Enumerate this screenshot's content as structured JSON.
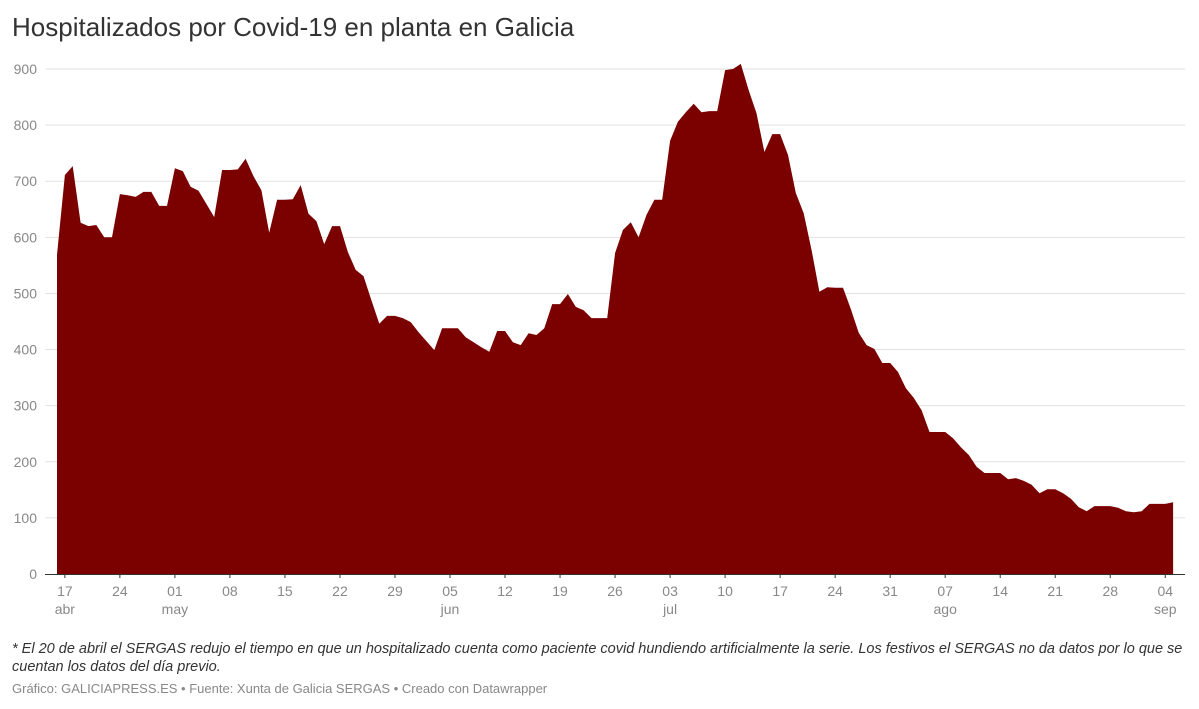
{
  "chart_data": {
    "type": "area",
    "title": "Hospitalizados por Covid-19 en planta en Galicia",
    "color": "#7b0000",
    "ylim": [
      0,
      900
    ],
    "yticks": [
      0,
      100,
      200,
      300,
      400,
      500,
      600,
      700,
      800,
      900
    ],
    "grid": true,
    "xticks": [
      {
        "date": "04-17",
        "label": "17",
        "month": "abr"
      },
      {
        "date": "04-24",
        "label": "24"
      },
      {
        "date": "05-01",
        "label": "01",
        "month": "may"
      },
      {
        "date": "05-08",
        "label": "08"
      },
      {
        "date": "05-15",
        "label": "15"
      },
      {
        "date": "05-22",
        "label": "22"
      },
      {
        "date": "05-29",
        "label": "29"
      },
      {
        "date": "06-05",
        "label": "05",
        "month": "jun"
      },
      {
        "date": "06-12",
        "label": "12"
      },
      {
        "date": "06-19",
        "label": "19"
      },
      {
        "date": "06-26",
        "label": "26"
      },
      {
        "date": "07-03",
        "label": "03",
        "month": "jul"
      },
      {
        "date": "07-10",
        "label": "10"
      },
      {
        "date": "07-17",
        "label": "17"
      },
      {
        "date": "07-24",
        "label": "24"
      },
      {
        "date": "07-31",
        "label": "31"
      },
      {
        "date": "08-07",
        "label": "07",
        "month": "ago"
      },
      {
        "date": "08-14",
        "label": "14"
      },
      {
        "date": "08-21",
        "label": "21"
      },
      {
        "date": "08-28",
        "label": "28"
      },
      {
        "date": "09-04",
        "label": "04",
        "month": "sep"
      }
    ],
    "x": [
      "04-16",
      "04-17",
      "04-18",
      "04-19",
      "04-20",
      "04-21",
      "04-22",
      "04-23",
      "04-24",
      "04-25",
      "04-26",
      "04-27",
      "04-28",
      "04-29",
      "04-30",
      "05-01",
      "05-02",
      "05-03",
      "05-04",
      "05-05",
      "05-06",
      "05-07",
      "05-08",
      "05-09",
      "05-10",
      "05-11",
      "05-12",
      "05-13",
      "05-14",
      "05-15",
      "05-16",
      "05-17",
      "05-18",
      "05-19",
      "05-20",
      "05-21",
      "05-22",
      "05-23",
      "05-24",
      "05-25",
      "05-26",
      "05-27",
      "05-28",
      "05-29",
      "05-30",
      "05-31",
      "06-01",
      "06-02",
      "06-03",
      "06-04",
      "06-05",
      "06-06",
      "06-07",
      "06-08",
      "06-09",
      "06-10",
      "06-11",
      "06-12",
      "06-13",
      "06-14",
      "06-15",
      "06-16",
      "06-17",
      "06-18",
      "06-19",
      "06-20",
      "06-21",
      "06-22",
      "06-23",
      "06-24",
      "06-25",
      "06-26",
      "06-27",
      "06-28",
      "06-29",
      "06-30",
      "07-01",
      "07-02",
      "07-03",
      "07-04",
      "07-05",
      "07-06",
      "07-07",
      "07-08",
      "07-09",
      "07-10",
      "07-11",
      "07-12",
      "07-13",
      "07-14",
      "07-15",
      "07-16",
      "07-17",
      "07-18",
      "07-19",
      "07-20",
      "07-21",
      "07-22",
      "07-23",
      "07-24",
      "07-25",
      "07-26",
      "07-27",
      "07-28",
      "07-29",
      "07-30",
      "07-31",
      "08-01",
      "08-02",
      "08-03",
      "08-04",
      "08-05",
      "08-06",
      "08-07",
      "08-08",
      "08-09",
      "08-10",
      "08-11",
      "08-12",
      "08-13",
      "08-14",
      "08-15",
      "08-16",
      "08-17",
      "08-18",
      "08-19",
      "08-20",
      "08-21",
      "08-22",
      "08-23",
      "08-24",
      "08-25",
      "08-26",
      "08-27",
      "08-28",
      "08-29",
      "08-30",
      "08-31",
      "09-01",
      "09-02",
      "09-03",
      "09-04",
      "09-05"
    ],
    "values": [
      569,
      711,
      727,
      626,
      620,
      622,
      600,
      600,
      677,
      675,
      672,
      681,
      681,
      656,
      656,
      723,
      718,
      690,
      683,
      660,
      636,
      720,
      720,
      721,
      740,
      709,
      684,
      608,
      667,
      667,
      668,
      693,
      642,
      629,
      588,
      620,
      620,
      574,
      542,
      531,
      488,
      446,
      460,
      460,
      456,
      449,
      431,
      415,
      399,
      438,
      438,
      438,
      422,
      413,
      404,
      396,
      433,
      433,
      413,
      408,
      429,
      426,
      438,
      481,
      481,
      499,
      476,
      470,
      456,
      456,
      456,
      572,
      613,
      627,
      600,
      640,
      667,
      667,
      772,
      806,
      823,
      838,
      823,
      825,
      825,
      898,
      900,
      909,
      862,
      821,
      752,
      784,
      784,
      747,
      679,
      643,
      577,
      503,
      511,
      510,
      510,
      472,
      430,
      408,
      401,
      376,
      376,
      360,
      331,
      314,
      292,
      253,
      253,
      253,
      242,
      226,
      212,
      191,
      180,
      180,
      180,
      169,
      171,
      166,
      159,
      144,
      151,
      151,
      144,
      134,
      119,
      112,
      121,
      121,
      121,
      118,
      112,
      110,
      112,
      125,
      125,
      125,
      128
    ]
  },
  "footnote": "* El 20 de abril el SERGAS redujo el tiempo en que un hospitalizado cuenta como paciente covid hundiendo artificialmente la serie. Los festivos el SERGAS no da datos por lo que se cuentan los datos del día previo.",
  "credit": "Gráfico: GALICIAPRESS.ES • Fuente: Xunta de Galicia SERGAS • Creado con Datawrapper"
}
